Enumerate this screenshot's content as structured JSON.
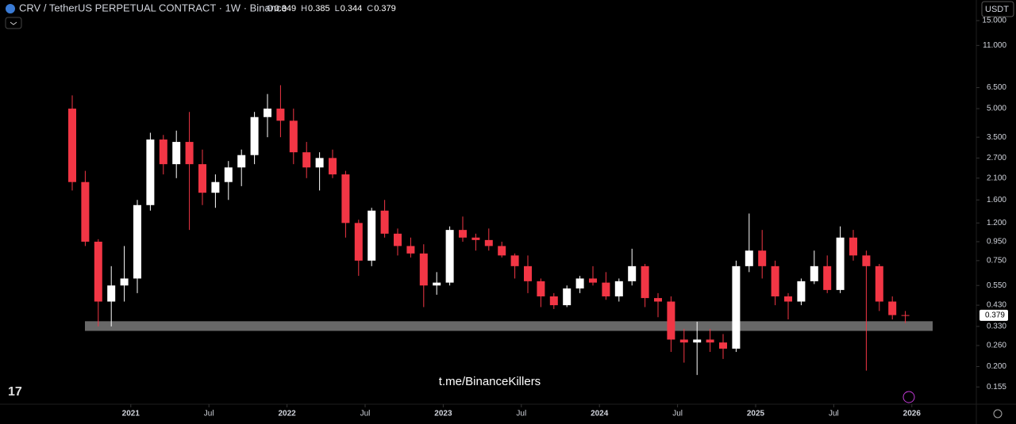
{
  "chart_data": {
    "type": "candlestick",
    "header": {
      "symbol": "CRV / TetherUS PERPETUAL CONTRACT · 1W · Binance",
      "ohlc": [
        {
          "label": "O",
          "value": 0.349
        },
        {
          "label": "H",
          "value": 0.385
        },
        {
          "label": "L",
          "value": 0.344
        },
        {
          "label": "C",
          "value": 0.379
        }
      ]
    },
    "currency": "USDT",
    "watermark": "t.me/BinanceKillers",
    "log_scale": true,
    "up_color": "#ffffff",
    "down_color": "#f23645",
    "zone": {
      "low": 0.312,
      "high": 0.352,
      "color": "#7a7a7a"
    },
    "x": [
      "2020-08",
      "2020-09",
      "2020-10",
      "2020-11",
      "2020-12",
      "2021-01",
      "2021-02",
      "2021-03",
      "2021-04",
      "2021-05",
      "2021-06",
      "2021-07",
      "2021-08",
      "2021-09",
      "2021-10",
      "2021-11",
      "2021-12",
      "2022-01",
      "2022-02",
      "2022-03",
      "2022-04",
      "2022-05",
      "2022-06",
      "2022-07",
      "2022-08",
      "2022-09",
      "2022-10",
      "2022-11",
      "2022-12",
      "2023-01",
      "2023-02",
      "2023-03",
      "2023-04",
      "2023-05",
      "2023-06",
      "2023-07",
      "2023-08",
      "2023-09",
      "2023-10",
      "2023-11",
      "2023-12",
      "2024-01",
      "2024-02",
      "2024-03",
      "2024-04",
      "2024-05",
      "2024-06",
      "2024-07",
      "2024-08",
      "2024-09",
      "2024-10",
      "2024-11",
      "2024-12",
      "2025-01",
      "2025-02",
      "2025-03",
      "2025-04",
      "2025-05",
      "2025-06",
      "2025-07",
      "2025-08",
      "2025-09",
      "2025-10",
      "2025-11",
      "2025-12"
    ],
    "open": [
      5.0,
      2.0,
      0.95,
      0.45,
      0.55,
      0.6,
      1.5,
      3.4,
      2.5,
      3.3,
      2.5,
      1.75,
      2.0,
      2.4,
      2.8,
      4.5,
      5.0,
      4.3,
      2.9,
      2.4,
      2.7,
      2.2,
      1.2,
      0.75,
      1.4,
      1.05,
      0.9,
      0.82,
      0.55,
      0.57,
      1.1,
      1.0,
      0.97,
      0.9,
      0.8,
      0.7,
      0.58,
      0.48,
      0.43,
      0.53,
      0.6,
      0.57,
      0.48,
      0.58,
      0.7,
      0.47,
      0.45,
      0.28,
      0.27,
      0.28,
      0.27,
      0.25,
      0.7,
      0.85,
      0.7,
      0.48,
      0.45,
      0.58,
      0.7,
      0.52,
      1.0,
      0.8,
      0.7,
      0.45,
      0.38
    ],
    "high": [
      5.9,
      2.3,
      0.98,
      0.7,
      0.9,
      1.6,
      3.7,
      3.6,
      3.8,
      4.8,
      3.0,
      2.2,
      2.6,
      3.0,
      4.8,
      6.0,
      6.7,
      5.0,
      3.3,
      2.9,
      3.0,
      2.3,
      1.25,
      1.45,
      1.6,
      1.12,
      1.0,
      0.92,
      0.65,
      1.15,
      1.3,
      1.05,
      1.12,
      0.95,
      0.82,
      0.8,
      0.6,
      0.5,
      0.55,
      0.62,
      0.7,
      0.65,
      0.6,
      0.87,
      0.72,
      0.5,
      0.48,
      0.32,
      0.35,
      0.32,
      0.3,
      0.75,
      1.35,
      1.1,
      0.75,
      0.5,
      0.6,
      0.85,
      0.8,
      1.15,
      1.1,
      0.85,
      0.72,
      0.48,
      0.4
    ],
    "low": [
      1.8,
      0.9,
      0.33,
      0.33,
      0.45,
      0.5,
      1.4,
      2.2,
      2.1,
      1.1,
      1.5,
      1.45,
      1.6,
      1.9,
      2.5,
      3.5,
      3.5,
      2.5,
      2.1,
      1.8,
      2.1,
      1.0,
      0.62,
      0.7,
      1.0,
      0.8,
      0.78,
      0.42,
      0.49,
      0.55,
      0.95,
      0.85,
      0.85,
      0.78,
      0.6,
      0.5,
      0.42,
      0.41,
      0.42,
      0.5,
      0.55,
      0.46,
      0.45,
      0.55,
      0.42,
      0.37,
      0.24,
      0.21,
      0.18,
      0.24,
      0.22,
      0.24,
      0.65,
      0.6,
      0.43,
      0.36,
      0.43,
      0.56,
      0.5,
      0.5,
      0.75,
      0.19,
      0.4,
      0.36,
      0.344
    ],
    "close": [
      2.0,
      0.95,
      0.45,
      0.55,
      0.6,
      1.5,
      3.4,
      2.5,
      3.3,
      2.5,
      1.75,
      2.0,
      2.4,
      2.8,
      4.5,
      5.0,
      4.3,
      2.9,
      2.4,
      2.7,
      2.2,
      1.2,
      0.75,
      1.4,
      1.05,
      0.9,
      0.82,
      0.55,
      0.57,
      1.1,
      1.0,
      0.97,
      0.9,
      0.8,
      0.7,
      0.58,
      0.48,
      0.43,
      0.53,
      0.6,
      0.57,
      0.48,
      0.58,
      0.7,
      0.47,
      0.45,
      0.28,
      0.27,
      0.28,
      0.27,
      0.25,
      0.7,
      0.85,
      0.7,
      0.48,
      0.45,
      0.58,
      0.7,
      0.52,
      1.0,
      0.8,
      0.7,
      0.45,
      0.38,
      0.379
    ],
    "ylim": [
      0.125,
      19.4
    ],
    "yticks": [
      {
        "value": 15,
        "label": "15.000"
      },
      {
        "value": 11,
        "label": "11.000"
      },
      {
        "value": 6.5,
        "label": "6.500"
      },
      {
        "value": 5,
        "label": "5.000"
      },
      {
        "value": 3.5,
        "label": "3.500"
      },
      {
        "value": 2.7,
        "label": "2.700"
      },
      {
        "value": 2.1,
        "label": "2.100"
      },
      {
        "value": 1.6,
        "label": "1.600"
      },
      {
        "value": 1.2,
        "label": "1.200"
      },
      {
        "value": 0.95,
        "label": "0.950"
      },
      {
        "value": 0.75,
        "label": "0.750"
      },
      {
        "value": 0.55,
        "label": "0.550"
      },
      {
        "value": 0.43,
        "label": "0.430"
      },
      {
        "value": 0.33,
        "label": "0.330"
      },
      {
        "value": 0.26,
        "label": "0.260"
      },
      {
        "value": 0.2,
        "label": "0.200"
      },
      {
        "value": 0.155,
        "label": "0.155"
      }
    ],
    "xticks": [
      {
        "value": "2021-01",
        "label": "2021"
      },
      {
        "value": "2021-07",
        "label": "Jul"
      },
      {
        "value": "2022-01",
        "label": "2022"
      },
      {
        "value": "2022-07",
        "label": "Jul"
      },
      {
        "value": "2023-01",
        "label": "2023"
      },
      {
        "value": "2023-07",
        "label": "Jul"
      },
      {
        "value": "2024-01",
        "label": "2024"
      },
      {
        "value": "2024-07",
        "label": "Jul"
      },
      {
        "value": "2025-01",
        "label": "2025"
      },
      {
        "value": "2025-07",
        "label": "Jul"
      },
      {
        "value": "2026-01",
        "label": "2026"
      }
    ]
  }
}
